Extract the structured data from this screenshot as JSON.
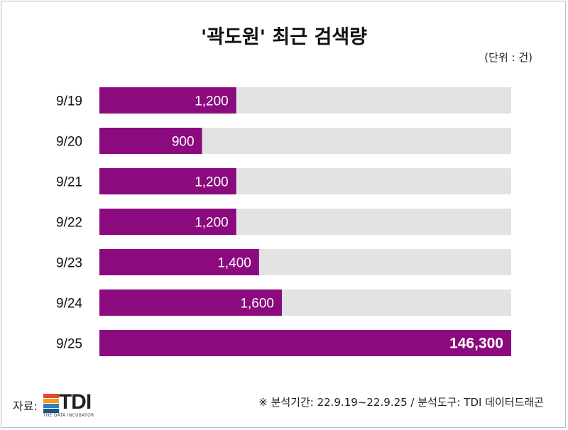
{
  "title": "'곽도원' 최근 검색량",
  "unit_note": "(단위 : 건)",
  "chart_data": {
    "type": "bar",
    "orientation": "horizontal",
    "categories": [
      "9/19",
      "9/20",
      "9/21",
      "9/22",
      "9/23",
      "9/24",
      "9/25"
    ],
    "values": [
      1200,
      900,
      1200,
      1200,
      1400,
      1600,
      146300
    ],
    "value_labels": [
      "1,200",
      "900",
      "1,200",
      "1,200",
      "1,400",
      "1,600",
      "146,300"
    ],
    "colors": {
      "bar": "#8b0a7e",
      "track": "#e3e3e3",
      "label_text": "#ffffff"
    }
  },
  "footer": {
    "source_label": "자료:",
    "logo_text": "TDI",
    "logo_subtext": "THE DATA INCUBATOR",
    "logo_colors": [
      "#e8452c",
      "#f39a1e",
      "#2f7fc1",
      "#1d4f91"
    ],
    "note": "※ 분석기간: 22.9.19~22.9.25 / 분석도구: TDI 데이터드래곤"
  }
}
